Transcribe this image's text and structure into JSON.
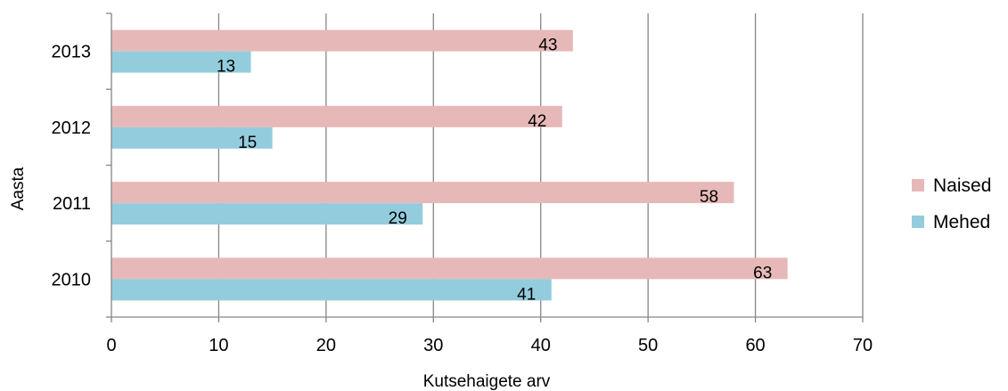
{
  "chart_data": {
    "type": "bar",
    "orientation": "horizontal",
    "categories": [
      "2010",
      "2011",
      "2012",
      "2013"
    ],
    "series": [
      {
        "name": "Naised",
        "values": [
          63,
          58,
          42,
          43
        ],
        "color": "#e6b9b8"
      },
      {
        "name": "Mehed",
        "values": [
          41,
          29,
          15,
          13
        ],
        "color": "#93cddd"
      }
    ],
    "xlabel": "Kutsehaigete arv",
    "ylabel": "Aasta",
    "xlim": [
      0,
      70
    ],
    "xticks": [
      "0",
      "10",
      "20",
      "30",
      "40",
      "50",
      "60",
      "70"
    ],
    "grid": "vertical",
    "legend": "right"
  }
}
